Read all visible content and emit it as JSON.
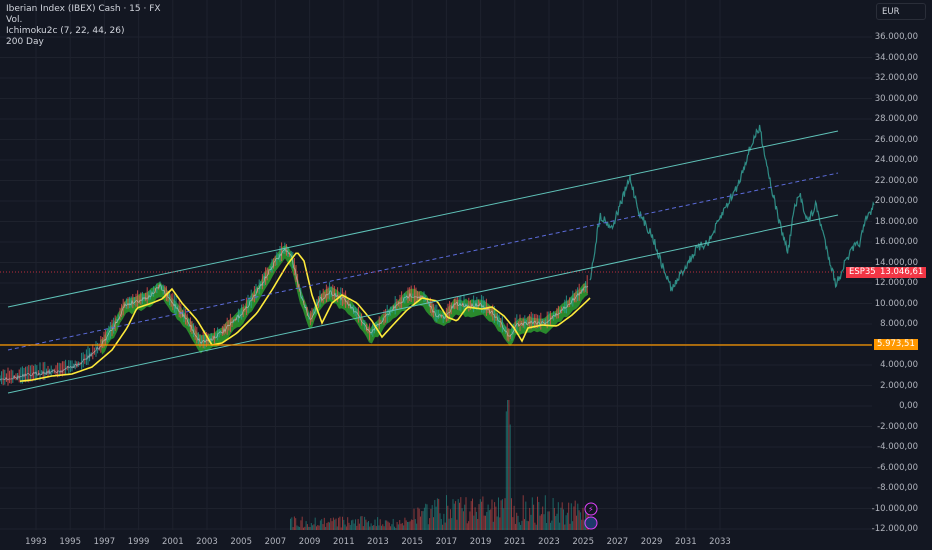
{
  "legend": {
    "title": "Iberian Index (IBEX) Cash · 15 · FX",
    "vol": "Vol.",
    "ichimoku": "Ichimoku2c (7, 22, 44, 26)",
    "ma": "200 Day"
  },
  "currency": "EUR",
  "price_axis": [
    "36.000,00",
    "34.000,00",
    "32.000,00",
    "30.000,00",
    "28.000,00",
    "26.000,00",
    "24.000,00",
    "22.000,00",
    "20.000,00",
    "18.000,00",
    "16.000,00",
    "14.000,00",
    "12.000,00",
    "10.000,00",
    "8.000,00",
    "6.000,00",
    "4.000,00",
    "2.000,00",
    "0,00",
    "-2.000,00",
    "-4.000,00",
    "-6.000,00",
    "-8.000,00",
    "-10.000,00",
    "-12.000,00"
  ],
  "time_axis": [
    "1993",
    "1995",
    "1997",
    "1999",
    "2001",
    "2003",
    "2005",
    "2007",
    "2009",
    "2011",
    "2013",
    "2015",
    "2017",
    "2019",
    "2021",
    "2023",
    "2025",
    "2027",
    "2029",
    "2031",
    "2033"
  ],
  "symbol_tag": "ESP35",
  "last_price": "13.046,61",
  "hline_price": "5.973,51",
  "colors": {
    "background": "#131722",
    "last_price": "#f23645",
    "hline": "#ff9800",
    "channel": "#5fc2b8",
    "midline": "#5b6bd9",
    "projection": "#2f8c85",
    "ma": "#ffeb3b",
    "cloud": "#2e9d2e"
  }
}
